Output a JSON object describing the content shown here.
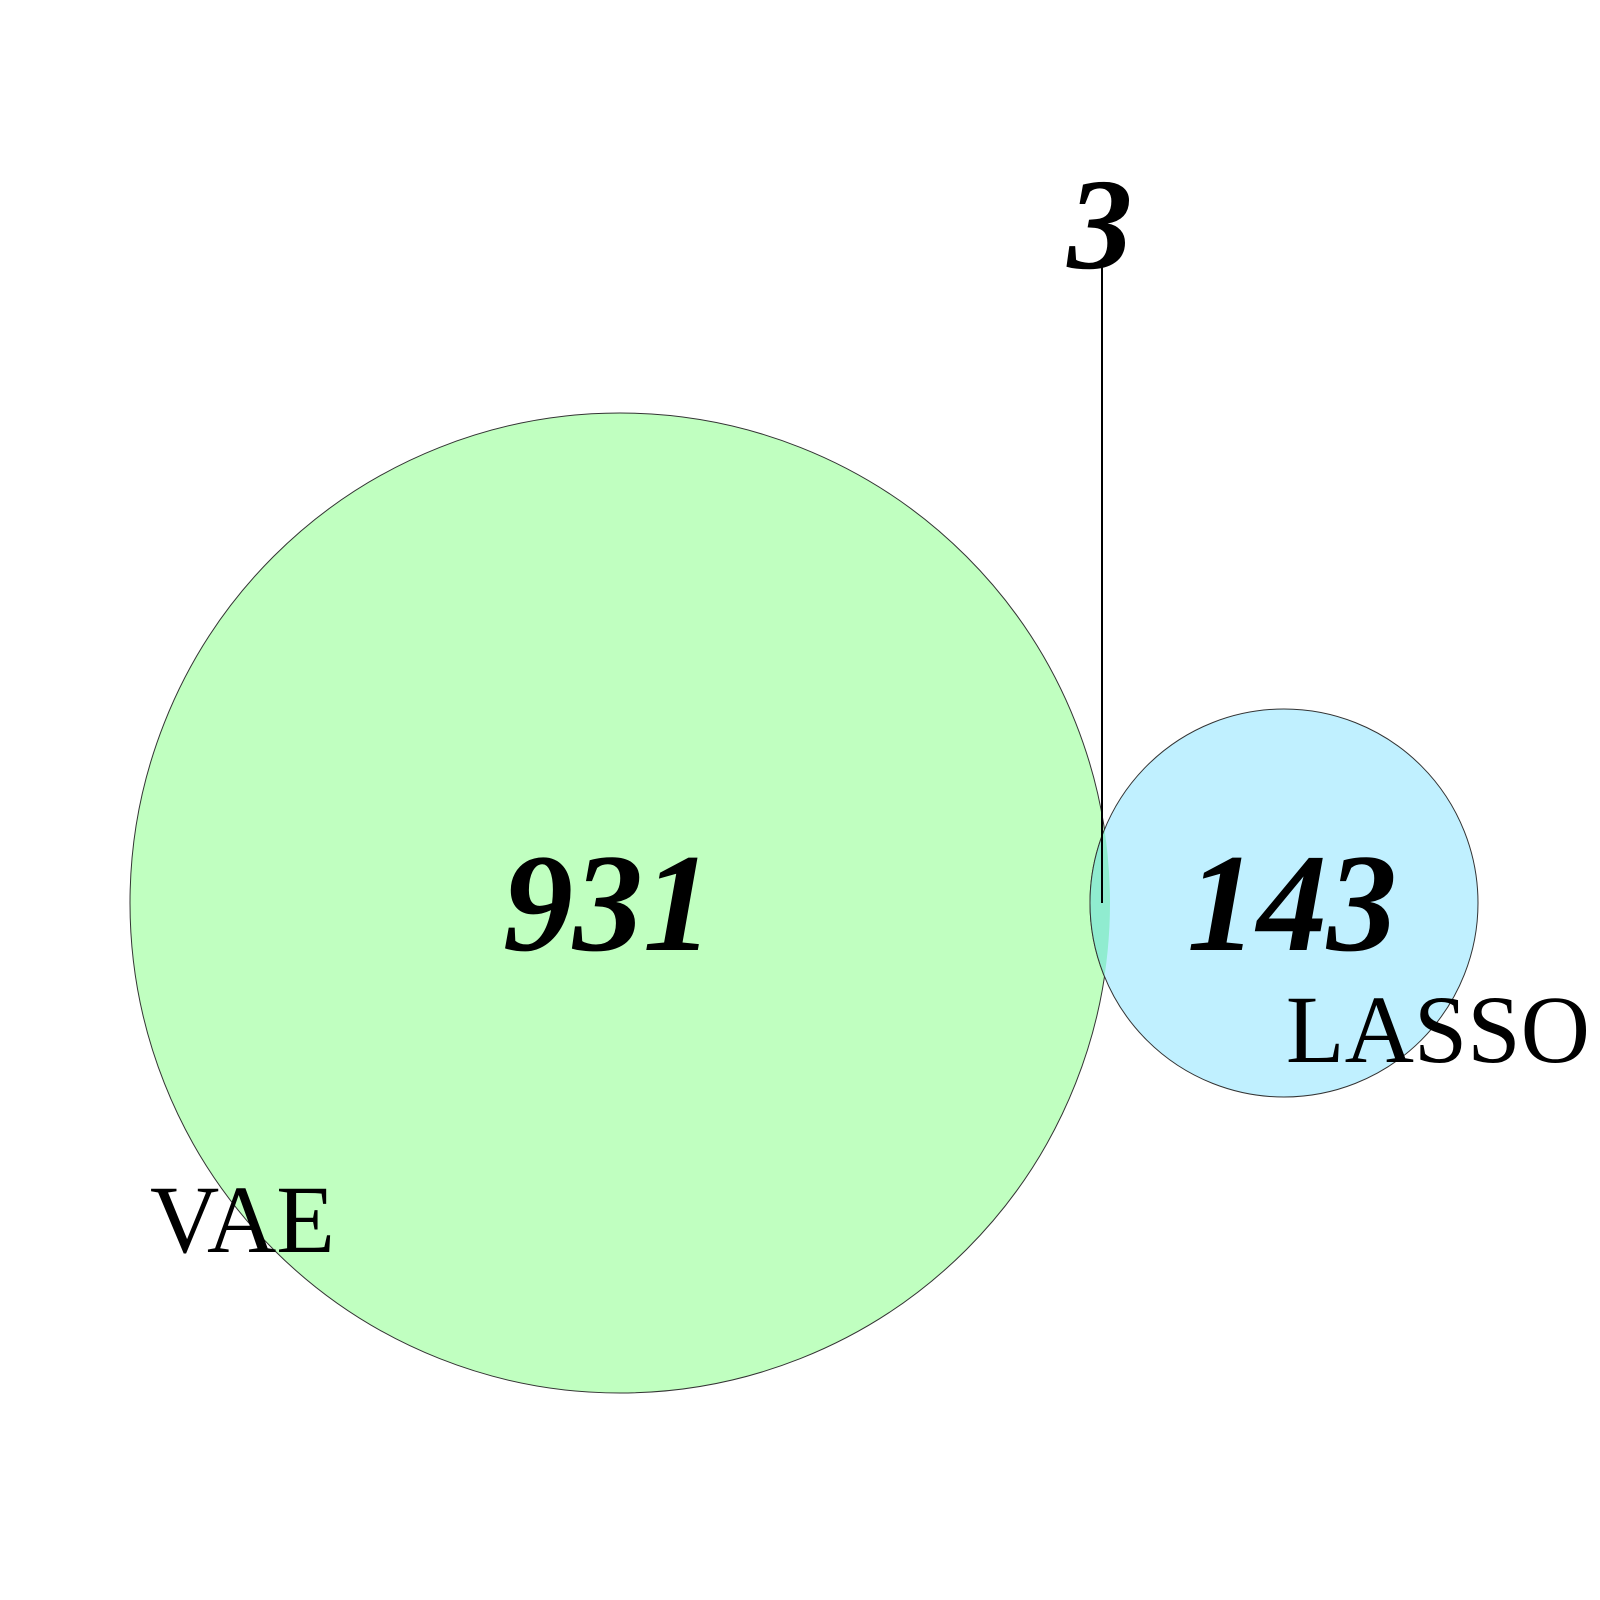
{
  "diagram": {
    "type": "venn",
    "sets": [
      {
        "id": "vae",
        "label": "VAE",
        "fill": "#c0ffc0",
        "stroke": "#333333"
      },
      {
        "id": "lasso",
        "label": "LASSO",
        "fill": "#c0f0ff",
        "stroke": "#333333"
      }
    ],
    "overlap_fill": "#90ecd0",
    "counts": {
      "vae_only": "931",
      "lasso_only": "143",
      "intersection": "3"
    }
  }
}
